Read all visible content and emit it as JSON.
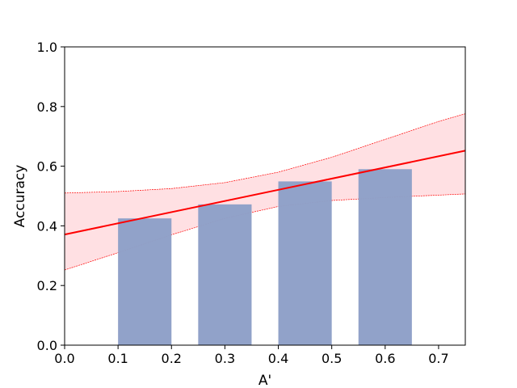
{
  "chart_data": {
    "type": "bar",
    "title": "",
    "xlabel": "A'",
    "ylabel": "Accuracy",
    "xlim": [
      0.0,
      0.75
    ],
    "ylim": [
      0.0,
      1.0
    ],
    "xticks": [
      0.0,
      0.1,
      0.2,
      0.3,
      0.4,
      0.5,
      0.6,
      0.7
    ],
    "xtick_labels": [
      "0.0",
      "0.1",
      "0.2",
      "0.3",
      "0.4",
      "0.5",
      "0.6",
      "0.7"
    ],
    "yticks": [
      0.0,
      0.2,
      0.4,
      0.6,
      0.8,
      1.0
    ],
    "ytick_labels": [
      "0.0",
      "0.2",
      "0.4",
      "0.6",
      "0.8",
      "1.0"
    ],
    "grid": false,
    "legend": "none",
    "bars": [
      {
        "x_start": 0.1,
        "x_end": 0.2,
        "value": 0.425
      },
      {
        "x_start": 0.25,
        "x_end": 0.35,
        "value": 0.472
      },
      {
        "x_start": 0.4,
        "x_end": 0.5,
        "value": 0.549
      },
      {
        "x_start": 0.55,
        "x_end": 0.65,
        "value": 0.59
      }
    ],
    "fit_line": {
      "x": [
        0.0,
        0.75
      ],
      "y": [
        0.371,
        0.652
      ]
    },
    "confidence_band": {
      "x": [
        0.0,
        0.1,
        0.2,
        0.3,
        0.4,
        0.5,
        0.6,
        0.7,
        0.75
      ],
      "upper": [
        0.51,
        0.515,
        0.525,
        0.545,
        0.58,
        0.63,
        0.69,
        0.75,
        0.776
      ],
      "lower": [
        0.252,
        0.31,
        0.37,
        0.425,
        0.465,
        0.485,
        0.495,
        0.503,
        0.507
      ]
    },
    "colors": {
      "bar": "#8fa0c8",
      "fit_line": "#ff0000",
      "band_fill": "#ffe0e3",
      "band_edge": "#ff0000",
      "axis": "#000000"
    }
  }
}
